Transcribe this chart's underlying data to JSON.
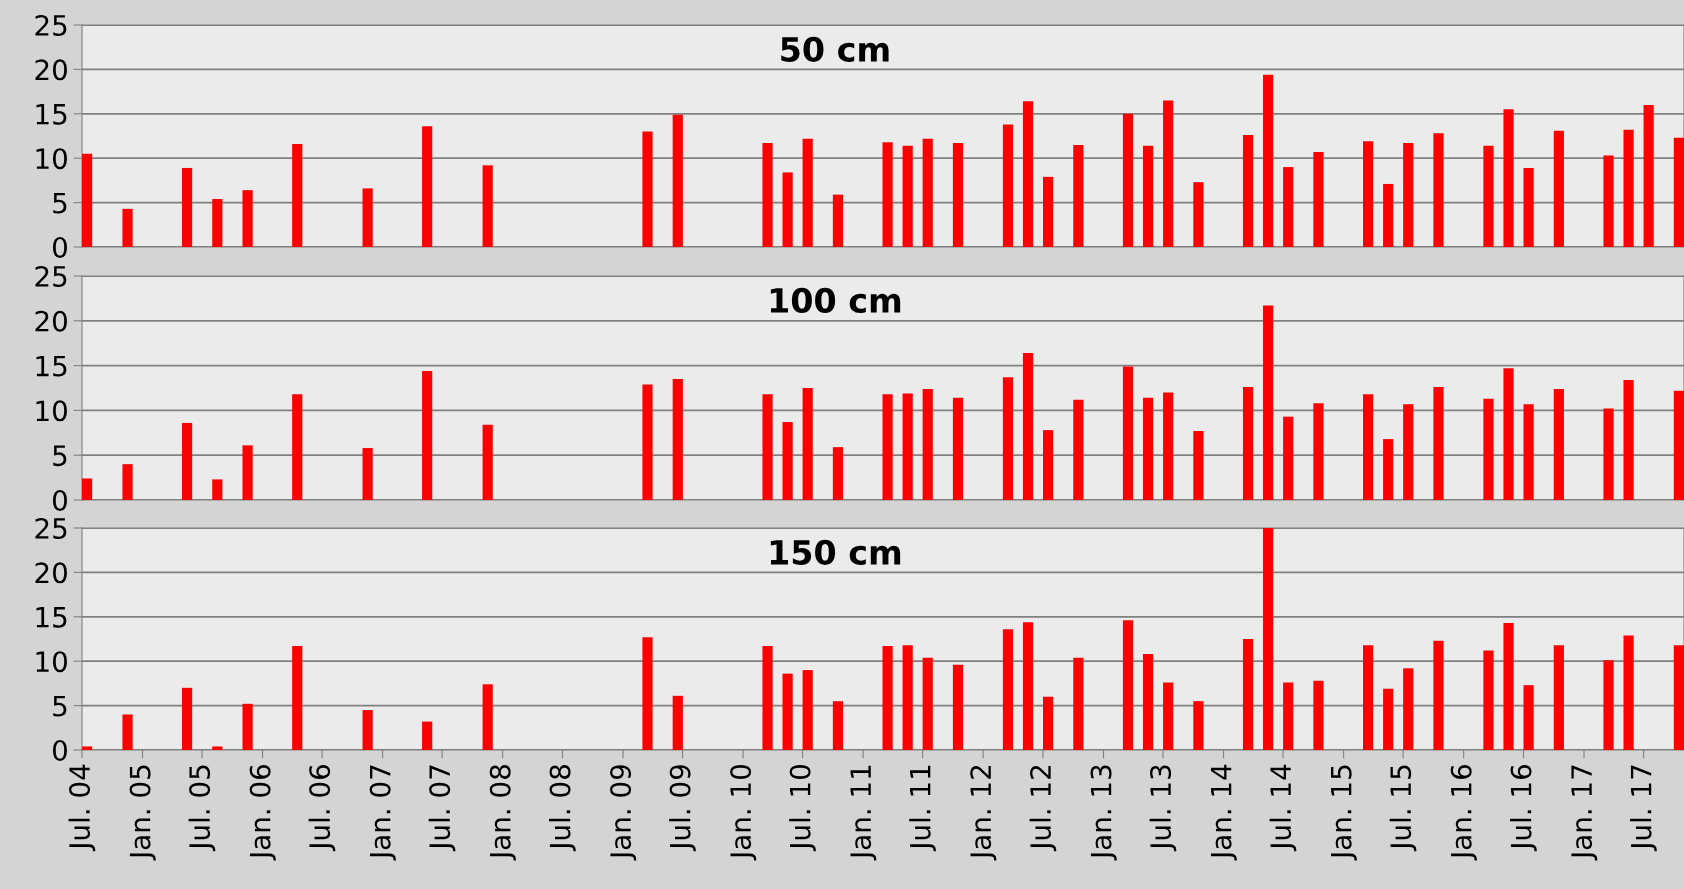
{
  "chart_data": [
    {
      "type": "bar",
      "title": "50 cm",
      "color": "#ff0000",
      "grid": "y",
      "tick_labels": "y",
      "xlim": [
        "2004-07",
        "2017-11"
      ],
      "ylim": [
        0,
        25
      ],
      "yticks": [
        0,
        5,
        10,
        15,
        20,
        25
      ],
      "x": [
        "2004-07",
        "2004-11",
        "2005-05",
        "2005-08",
        "2005-11",
        "2006-04",
        "2006-11",
        "2007-05",
        "2007-11",
        "2009-03",
        "2009-06",
        "2010-03",
        "2010-05",
        "2010-07",
        "2010-10",
        "2011-03",
        "2011-05",
        "2011-07",
        "2011-10",
        "2012-03",
        "2012-05",
        "2012-07",
        "2012-10",
        "2013-03",
        "2013-05",
        "2013-07",
        "2013-10",
        "2014-03",
        "2014-05",
        "2014-07",
        "2014-10",
        "2015-03",
        "2015-05",
        "2015-07",
        "2015-10",
        "2016-03",
        "2016-05",
        "2016-07",
        "2016-10",
        "2017-03",
        "2017-05",
        "2017-07",
        "2017-10"
      ],
      "values": [
        10.5,
        4.3,
        8.9,
        5.4,
        6.4,
        11.6,
        6.6,
        13.6,
        9.2,
        13.0,
        14.9,
        11.7,
        8.4,
        12.2,
        5.9,
        11.8,
        11.4,
        12.2,
        11.7,
        13.8,
        16.4,
        7.9,
        11.5,
        15.0,
        11.4,
        16.5,
        7.3,
        12.6,
        19.4,
        9.0,
        10.7,
        11.9,
        7.1,
        11.7,
        12.8,
        11.4,
        15.5,
        8.9,
        13.1,
        10.3,
        13.2,
        16.0,
        12.3
      ]
    },
    {
      "type": "bar",
      "title": "100 cm",
      "color": "#ff0000",
      "grid": "y",
      "tick_labels": "y",
      "xlim": [
        "2004-07",
        "2017-11"
      ],
      "ylim": [
        0,
        25
      ],
      "yticks": [
        0,
        5,
        10,
        15,
        20,
        25
      ],
      "x": [
        "2004-07",
        "2004-11",
        "2005-05",
        "2005-08",
        "2005-11",
        "2006-04",
        "2006-11",
        "2007-05",
        "2007-11",
        "2009-03",
        "2009-06",
        "2010-03",
        "2010-05",
        "2010-07",
        "2010-10",
        "2011-03",
        "2011-05",
        "2011-07",
        "2011-10",
        "2012-03",
        "2012-05",
        "2012-07",
        "2012-10",
        "2013-03",
        "2013-05",
        "2013-07",
        "2013-10",
        "2014-03",
        "2014-05",
        "2014-07",
        "2014-10",
        "2015-03",
        "2015-05",
        "2015-07",
        "2015-10",
        "2016-03",
        "2016-05",
        "2016-07",
        "2016-10",
        "2017-03",
        "2017-05",
        "2017-07",
        "2017-10"
      ],
      "values": [
        2.4,
        4.0,
        8.6,
        2.3,
        6.1,
        11.8,
        5.8,
        14.4,
        8.4,
        12.9,
        13.5,
        11.8,
        8.7,
        12.5,
        5.9,
        11.8,
        11.9,
        12.4,
        11.4,
        13.7,
        16.4,
        7.8,
        11.2,
        14.9,
        11.4,
        12.0,
        7.7,
        12.6,
        21.7,
        9.3,
        10.8,
        11.8,
        6.8,
        10.7,
        12.6,
        11.3,
        14.7,
        10.7,
        12.4,
        10.2,
        13.4,
        null,
        12.2
      ]
    },
    {
      "type": "bar",
      "title": "150 cm",
      "color": "#ff0000",
      "grid": "y",
      "xlim": [
        "2004-07",
        "2017-11"
      ],
      "ylim": [
        0,
        25
      ],
      "yticks": [
        0,
        5,
        10,
        15,
        20,
        25
      ],
      "xticks": [
        {
          "value": "2004-07",
          "label": "Jul. 04"
        },
        {
          "value": "2005-01",
          "label": "Jan. 05"
        },
        {
          "value": "2005-07",
          "label": "Jul. 05"
        },
        {
          "value": "2006-01",
          "label": "Jan. 06"
        },
        {
          "value": "2006-07",
          "label": "Jul. 06"
        },
        {
          "value": "2007-01",
          "label": "Jan. 07"
        },
        {
          "value": "2007-07",
          "label": "Jul. 07"
        },
        {
          "value": "2008-01",
          "label": "Jan. 08"
        },
        {
          "value": "2008-07",
          "label": "Jul. 08"
        },
        {
          "value": "2009-01",
          "label": "Jan. 09"
        },
        {
          "value": "2009-07",
          "label": "Jul. 09"
        },
        {
          "value": "2010-01",
          "label": "Jan. 10"
        },
        {
          "value": "2010-07",
          "label": "Jul. 10"
        },
        {
          "value": "2011-01",
          "label": "Jan. 11"
        },
        {
          "value": "2011-07",
          "label": "Jul. 11"
        },
        {
          "value": "2012-01",
          "label": "Jan. 12"
        },
        {
          "value": "2012-07",
          "label": "Jul. 12"
        },
        {
          "value": "2013-01",
          "label": "Jan. 13"
        },
        {
          "value": "2013-07",
          "label": "Jul. 13"
        },
        {
          "value": "2014-01",
          "label": "Jan. 14"
        },
        {
          "value": "2014-07",
          "label": "Jul. 14"
        },
        {
          "value": "2015-01",
          "label": "Jan. 15"
        },
        {
          "value": "2015-07",
          "label": "Jul. 15"
        },
        {
          "value": "2016-01",
          "label": "Jan. 16"
        },
        {
          "value": "2016-07",
          "label": "Jul. 16"
        },
        {
          "value": "2017-01",
          "label": "Jan. 17"
        },
        {
          "value": "2017-07",
          "label": "Jul. 17"
        }
      ],
      "x": [
        "2004-07",
        "2004-11",
        "2005-05",
        "2005-08",
        "2005-11",
        "2006-04",
        "2006-11",
        "2007-05",
        "2007-11",
        "2009-03",
        "2009-06",
        "2010-03",
        "2010-05",
        "2010-07",
        "2010-10",
        "2011-03",
        "2011-05",
        "2011-07",
        "2011-10",
        "2012-03",
        "2012-05",
        "2012-07",
        "2012-10",
        "2013-03",
        "2013-05",
        "2013-07",
        "2013-10",
        "2014-03",
        "2014-05",
        "2014-07",
        "2014-10",
        "2015-03",
        "2015-05",
        "2015-07",
        "2015-10",
        "2016-03",
        "2016-05",
        "2016-07",
        "2016-10",
        "2017-03",
        "2017-05",
        "2017-07",
        "2017-10"
      ],
      "values": [
        0.4,
        4.0,
        7.0,
        0.4,
        5.2,
        11.7,
        4.5,
        3.2,
        7.4,
        12.7,
        6.1,
        11.7,
        8.6,
        9.0,
        5.5,
        11.7,
        11.8,
        10.4,
        9.6,
        13.6,
        14.4,
        6.0,
        10.4,
        14.6,
        10.8,
        7.6,
        5.5,
        12.5,
        25,
        7.6,
        7.8,
        11.8,
        6.9,
        9.2,
        12.3,
        11.2,
        14.3,
        7.3,
        11.8,
        10.1,
        12.9,
        null,
        11.8
      ]
    }
  ]
}
